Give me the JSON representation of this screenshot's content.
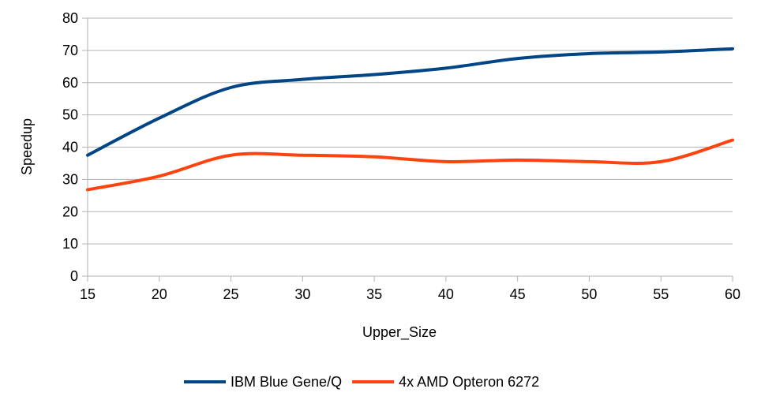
{
  "chart_data": {
    "type": "line",
    "title": "",
    "xlabel": "Upper_Size",
    "ylabel": "Speedup",
    "x": [
      15,
      20,
      25,
      30,
      35,
      40,
      45,
      50,
      55,
      60
    ],
    "xlim": [
      15,
      60
    ],
    "ylim": [
      0,
      80
    ],
    "xticks": [
      15,
      20,
      25,
      30,
      35,
      40,
      45,
      50,
      55,
      60
    ],
    "yticks": [
      0,
      10,
      20,
      30,
      40,
      50,
      60,
      70,
      80
    ],
    "grid": "horizontal",
    "legend_position": "bottom",
    "smooth": true,
    "series": [
      {
        "name": "IBM Blue Gene/Q",
        "color": "#004586",
        "values": [
          37.5,
          49,
          58.5,
          61,
          62.5,
          64.5,
          67.5,
          69,
          69.5,
          70.5
        ]
      },
      {
        "name": "4x AMD Opteron 6272",
        "color": "#ff420e",
        "values": [
          26.8,
          31,
          37.5,
          37.5,
          37,
          35.5,
          36,
          35.5,
          35.5,
          42.2
        ]
      }
    ]
  }
}
